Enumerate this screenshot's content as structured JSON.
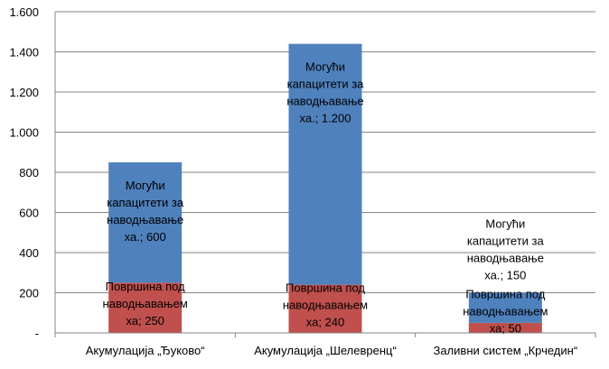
{
  "chart_data": {
    "type": "bar",
    "stacked": true,
    "categories": [
      "Акумулација „Ђуково“",
      "Акумулација „Шелевренц“",
      "Заливни систем „Крчедин“"
    ],
    "series": [
      {
        "name": "Површина под наводњавањем",
        "values": [
          250,
          240,
          50
        ],
        "label_lines": [
          "Површина под",
          "наводњавањем",
          "ха;"
        ],
        "color": "#c0504d"
      },
      {
        "name": "Могући капацитети за наводњавање",
        "values": [
          600,
          1200,
          150
        ],
        "label_lines": [
          "Могући",
          "капацитети за",
          "наводњавање",
          "ха.;"
        ],
        "color": "#4f81bd"
      }
    ],
    "value_labels": [
      [
        "250",
        "240",
        "50"
      ],
      [
        "600",
        "1.200",
        "150"
      ]
    ],
    "ylim": [
      0,
      1600
    ],
    "yticks": [
      0,
      200,
      400,
      600,
      800,
      1000,
      1200,
      1400,
      1600
    ],
    "ytick_labels": [
      "-",
      "200",
      "400",
      "600",
      "800",
      "1.000",
      "1.200",
      "1.400",
      "1.600"
    ],
    "grid": true,
    "gridline_color": "#868686",
    "title": "",
    "xlabel": "",
    "ylabel": "",
    "legend": "none"
  }
}
